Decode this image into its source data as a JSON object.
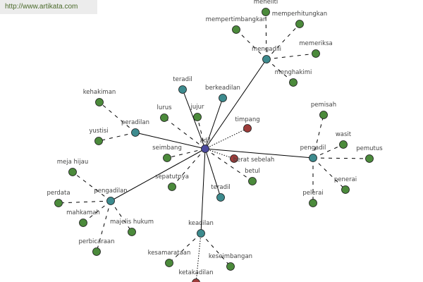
{
  "watermark": "http://www.artikata.com",
  "colors": {
    "center": "#4b4a9e",
    "hub": "#3d8b8e",
    "synonym": "#4b8a3b",
    "antonym": "#9e3c3a",
    "edge": "#000000"
  },
  "nodes": [
    {
      "id": "adil",
      "label": "adil",
      "type": "center"
    },
    {
      "id": "mengadili",
      "label": "mengadili",
      "type": "hub"
    },
    {
      "id": "pengadil",
      "label": "pengadil",
      "type": "hub"
    },
    {
      "id": "pengadilan",
      "label": "pengadilan",
      "type": "hub"
    },
    {
      "id": "keadilan",
      "label": "keadilan",
      "type": "hub"
    },
    {
      "id": "peradilan",
      "label": "peradilan",
      "type": "hub"
    },
    {
      "id": "teradil1",
      "label": "teradil",
      "type": "hub"
    },
    {
      "id": "berkeadilan",
      "label": "berkeadilan",
      "type": "hub"
    },
    {
      "id": "teradil2",
      "label": "teradil",
      "type": "hub"
    },
    {
      "id": "meneliti",
      "label": "meneliti",
      "type": "synonym"
    },
    {
      "id": "memperhitungkan",
      "label": "memperhitungkan",
      "type": "synonym"
    },
    {
      "id": "mempertimbangkan",
      "label": "mempertimbangkan",
      "type": "synonym"
    },
    {
      "id": "memeriksa",
      "label": "memeriksa",
      "type": "synonym"
    },
    {
      "id": "menghakimi",
      "label": "menghakimi",
      "type": "synonym"
    },
    {
      "id": "lurus",
      "label": "lurus",
      "type": "synonym"
    },
    {
      "id": "jujur",
      "label": "jujur",
      "type": "synonym"
    },
    {
      "id": "seimbang",
      "label": "seimbang",
      "type": "synonym"
    },
    {
      "id": "sepatutnya",
      "label": "sepatutnya",
      "type": "synonym"
    },
    {
      "id": "betul",
      "label": "betul",
      "type": "synonym"
    },
    {
      "id": "timpang",
      "label": "timpang",
      "type": "antonym"
    },
    {
      "id": "beratsebelah",
      "label": "berat sebelah",
      "type": "antonym"
    },
    {
      "id": "pemisah",
      "label": "pemisah",
      "type": "synonym"
    },
    {
      "id": "wasit",
      "label": "wasit",
      "type": "synonym"
    },
    {
      "id": "pemutus",
      "label": "pemutus",
      "type": "synonym"
    },
    {
      "id": "penerai",
      "label": "penerai",
      "type": "synonym"
    },
    {
      "id": "pelerai",
      "label": "pelerai",
      "type": "synonym"
    },
    {
      "id": "kehakiman",
      "label": "kehakiman",
      "type": "synonym"
    },
    {
      "id": "yustisi",
      "label": "yustisi",
      "type": "synonym"
    },
    {
      "id": "mejahijau",
      "label": "meja hijau",
      "type": "synonym"
    },
    {
      "id": "perdata",
      "label": "perdata",
      "type": "synonym"
    },
    {
      "id": "mahkamah",
      "label": "mahkamah",
      "type": "synonym"
    },
    {
      "id": "majelishukum",
      "label": "majelis hukum",
      "type": "synonym"
    },
    {
      "id": "perbicaraan",
      "label": "perbicaraan",
      "type": "synonym"
    },
    {
      "id": "kesamarataan",
      "label": "kesamarataan",
      "type": "synonym"
    },
    {
      "id": "keseimbangan",
      "label": "keseimbangan",
      "type": "synonym"
    },
    {
      "id": "ketakadilan",
      "label": "ketakadilan",
      "type": "antonym"
    }
  ],
  "edges": [
    {
      "from": "adil",
      "to": "mengadili",
      "style": "solid"
    },
    {
      "from": "adil",
      "to": "pengadil",
      "style": "solid"
    },
    {
      "from": "adil",
      "to": "pengadilan",
      "style": "solid"
    },
    {
      "from": "adil",
      "to": "keadilan",
      "style": "solid"
    },
    {
      "from": "adil",
      "to": "peradilan",
      "style": "solid"
    },
    {
      "from": "adil",
      "to": "teradil1",
      "style": "solid"
    },
    {
      "from": "adil",
      "to": "berkeadilan",
      "style": "solid"
    },
    {
      "from": "adil",
      "to": "teradil2",
      "style": "solid"
    },
    {
      "from": "adil",
      "to": "lurus",
      "style": "dashed"
    },
    {
      "from": "adil",
      "to": "jujur",
      "style": "dashed"
    },
    {
      "from": "adil",
      "to": "seimbang",
      "style": "dashed"
    },
    {
      "from": "adil",
      "to": "sepatutnya",
      "style": "dashed"
    },
    {
      "from": "adil",
      "to": "betul",
      "style": "dashed"
    },
    {
      "from": "adil",
      "to": "timpang",
      "style": "dotted"
    },
    {
      "from": "adil",
      "to": "beratsebelah",
      "style": "dotted"
    },
    {
      "from": "mengadili",
      "to": "meneliti",
      "style": "dashed"
    },
    {
      "from": "mengadili",
      "to": "memperhitungkan",
      "style": "dashed"
    },
    {
      "from": "mengadili",
      "to": "mempertimbangkan",
      "style": "dashed"
    },
    {
      "from": "mengadili",
      "to": "memeriksa",
      "style": "dashed"
    },
    {
      "from": "mengadili",
      "to": "menghakimi",
      "style": "dashed"
    },
    {
      "from": "pengadil",
      "to": "pemisah",
      "style": "dashed"
    },
    {
      "from": "pengadil",
      "to": "wasit",
      "style": "dashed"
    },
    {
      "from": "pengadil",
      "to": "pemutus",
      "style": "dashed"
    },
    {
      "from": "pengadil",
      "to": "penerai",
      "style": "dashed"
    },
    {
      "from": "pengadil",
      "to": "pelerai",
      "style": "dashed"
    },
    {
      "from": "peradilan",
      "to": "kehakiman",
      "style": "dashed"
    },
    {
      "from": "peradilan",
      "to": "yustisi",
      "style": "dashed"
    },
    {
      "from": "pengadilan",
      "to": "mejahijau",
      "style": "dashed"
    },
    {
      "from": "pengadilan",
      "to": "perdata",
      "style": "dashed"
    },
    {
      "from": "pengadilan",
      "to": "mahkamah",
      "style": "dashed"
    },
    {
      "from": "pengadilan",
      "to": "majelishukum",
      "style": "dashed"
    },
    {
      "from": "pengadilan",
      "to": "perbicaraan",
      "style": "dashed"
    },
    {
      "from": "keadilan",
      "to": "kesamarataan",
      "style": "dashed"
    },
    {
      "from": "keadilan",
      "to": "keseimbangan",
      "style": "dashed"
    },
    {
      "from": "keadilan",
      "to": "ketakadilan",
      "style": "dotted"
    }
  ]
}
